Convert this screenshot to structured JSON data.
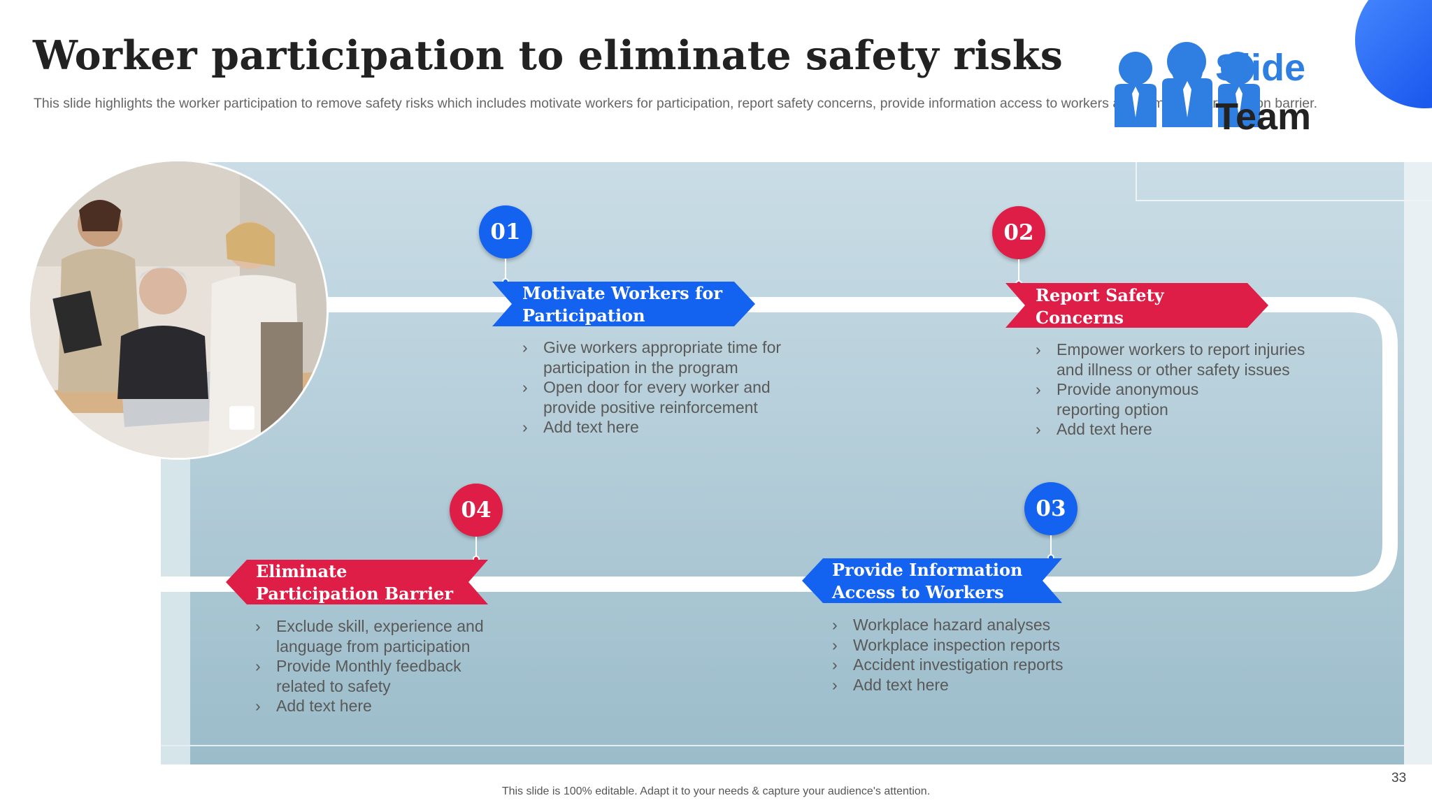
{
  "slide": {
    "title": "Worker participation to eliminate safety risks",
    "subtitle": "This slide highlights the worker participation to remove safety risks which includes motivate workers for participation, report safety concerns, provide information access to workers and eliminate participation barrier.",
    "logo": {
      "line1": "Slide",
      "line2": "Team",
      "icon": "team-people-icon"
    },
    "photo": {
      "icon": "business-team-photo"
    },
    "footer": "This slide is 100% editable. Adapt it to your needs & capture your audience's attention.",
    "page_number": "33"
  },
  "steps": [
    {
      "number": "01",
      "title_lines": [
        "Motivate Workers for",
        "Participation"
      ],
      "color": "#1463f0",
      "bullets": [
        [
          "Give workers appropriate time for",
          "participation in the program"
        ],
        [
          "Open door for every worker and",
          "provide positive reinforcement"
        ],
        [
          "Add text here"
        ]
      ]
    },
    {
      "number": "02",
      "title_lines": [
        "Report Safety",
        "Concerns"
      ],
      "color": "#de1e46",
      "bullets": [
        [
          "Empower workers to report injuries",
          "and illness or other safety issues"
        ],
        [
          "Provide anonymous",
          "reporting option"
        ],
        [
          "Add text here"
        ]
      ]
    },
    {
      "number": "03",
      "title_lines": [
        "Provide Information",
        "Access to Workers"
      ],
      "color": "#1463f0",
      "bullets": [
        [
          "Workplace hazard analyses"
        ],
        [
          "Workplace inspection reports"
        ],
        [
          "Accident investigation reports"
        ],
        [
          "Add text here"
        ]
      ]
    },
    {
      "number": "04",
      "title_lines": [
        "Eliminate",
        "Participation Barrier"
      ],
      "color": "#de1e46",
      "bullets": [
        [
          "Exclude skill, experience and",
          "language from participation"
        ],
        [
          "Provide Monthly feedback",
          "related to safety"
        ],
        [
          "Add text here"
        ]
      ]
    }
  ]
}
